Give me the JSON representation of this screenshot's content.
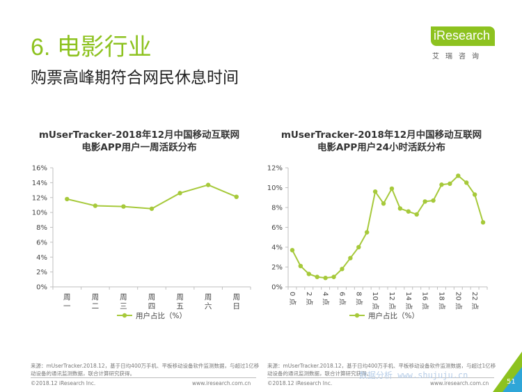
{
  "header": {
    "section_title": "6. 电影行业",
    "subtitle": "购票高峰期符合网民休息时间"
  },
  "logo": {
    "text": "iResearch",
    "sub": "艾瑞咨询"
  },
  "colors": {
    "accent": "#8dc21f",
    "line": "#a6c93a"
  },
  "chart_data": [
    {
      "type": "line",
      "title_line1": "mUserTracker-2018年12月中国移动互联网",
      "title_line2": "电影APP用户一周活跃分布",
      "categories": [
        "周一",
        "周二",
        "周三",
        "周四",
        "周五",
        "周六",
        "周日"
      ],
      "series": [
        {
          "name": "用户占比（%）",
          "values": [
            11.8,
            10.9,
            10.8,
            10.5,
            12.6,
            13.7,
            12.1
          ]
        }
      ],
      "yticks": [
        "0%",
        "2%",
        "4%",
        "6%",
        "8%",
        "10%",
        "12%",
        "14%",
        "16%"
      ],
      "ylim": [
        0,
        16
      ],
      "legend_position": "bottom"
    },
    {
      "type": "line",
      "title_line1": "mUserTracker-2018年12月中国移动互联网",
      "title_line2": "电影APP用户24小时活跃分布",
      "categories": [
        "0点",
        "1",
        "2点",
        "3",
        "4点",
        "5",
        "6点",
        "7",
        "8点",
        "9",
        "10点",
        "11",
        "12点",
        "13",
        "14点",
        "15",
        "16点",
        "17",
        "18点",
        "19",
        "20点",
        "21",
        "22点",
        "23"
      ],
      "tick_labels": [
        "0点",
        "2点",
        "4点",
        "6点",
        "8点",
        "10点",
        "12点",
        "14点",
        "16点",
        "18点",
        "20点",
        "22点"
      ],
      "series": [
        {
          "name": "用户占比（%）",
          "values": [
            3.7,
            2.1,
            1.3,
            1.0,
            0.9,
            1.0,
            1.8,
            2.9,
            4.0,
            5.5,
            9.6,
            8.4,
            9.9,
            7.9,
            7.6,
            7.3,
            8.6,
            8.7,
            10.3,
            10.4,
            11.2,
            10.5,
            9.3,
            6.5
          ]
        }
      ],
      "yticks": [
        "0%",
        "2%",
        "4%",
        "6%",
        "8%",
        "10%",
        "12%"
      ],
      "ylim": [
        0,
        12
      ],
      "legend_position": "bottom"
    }
  ],
  "sources": [
    {
      "text": "来源：mUserTracker.2018.12，基于日均400万手机、平板移动设备软件监测数据，与超过1亿移动设备的通讯监测数据，联合计算研究获得。"
    },
    {
      "text": "来源：mUserTracker.2018.12，基于日均400万手机、平板移动设备软件监测数据，与超过1亿移动设备的通讯监测数据，联合计算研究获得。"
    }
  ],
  "footer": {
    "copyright": "©2018.12 iResearch Inc.",
    "website": "www.iresearch.com.cn",
    "page_number": "51",
    "watermark": "数据分析 www.shujuju.cn"
  }
}
